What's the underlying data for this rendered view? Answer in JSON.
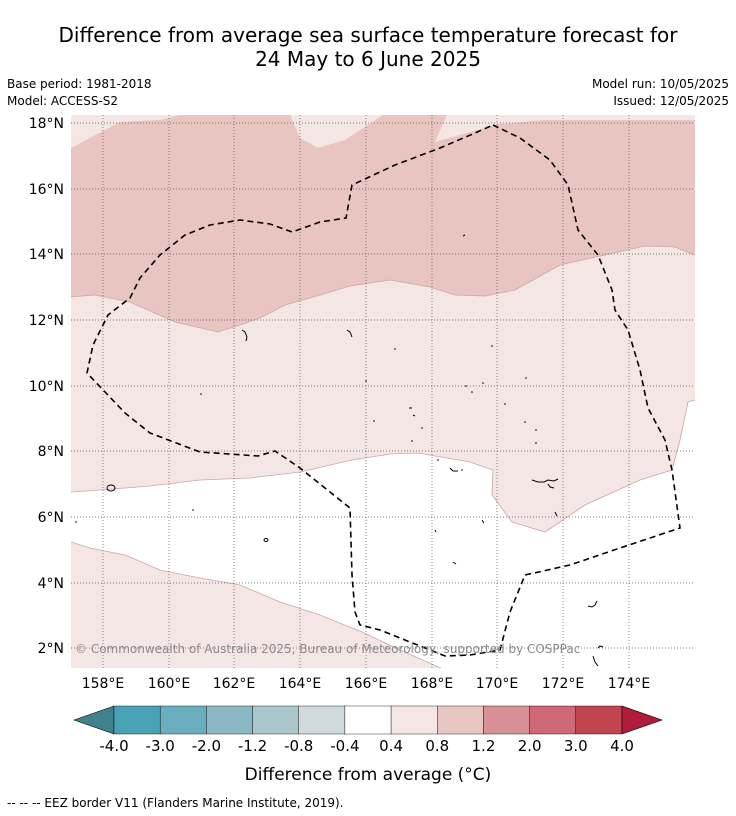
{
  "title_line1": "Difference from average sea surface temperature forecast for",
  "title_line2": "24 May to 6 June 2025",
  "base_period": "Base period: 1981-2018",
  "model": "Model: ACCESS-S2",
  "model_run": "Model run: 10/05/2025",
  "issued": "Issued: 12/05/2025",
  "copyright": "© Commonwealth of Australia 2025, Bureau of Meteorology, supported by COSPPac",
  "lon_labels": [
    "158°E",
    "160°E",
    "162°E",
    "164°E",
    "166°E",
    "168°E",
    "170°E",
    "172°E",
    "174°E"
  ],
  "lat_labels": [
    "18°N",
    "16°N",
    "14°N",
    "12°N",
    "10°N",
    "8°N",
    "6°N",
    "4°N",
    "2°N"
  ],
  "colorbar": {
    "ticks": [
      "-4.0",
      "-3.0",
      "-2.0",
      "-1.2",
      "-0.8",
      "-0.4",
      "0.4",
      "0.8",
      "1.2",
      "2.0",
      "3.0",
      "4.0"
    ],
    "label": "Difference from average (°C)",
    "colors": [
      "#3f828e",
      "#4aa3b5",
      "#6aafbf",
      "#8cb8c5",
      "#a9c6cb",
      "#d0d9db",
      "#ffffff",
      "#f4e6e4",
      "#e8c5c1",
      "#d98f96",
      "#cd6a74",
      "#c1454f",
      "#b01c3a"
    ]
  },
  "legend_note": "--  --  -- EEZ border V11 (Flanders Marine Institute, 2019)."
}
